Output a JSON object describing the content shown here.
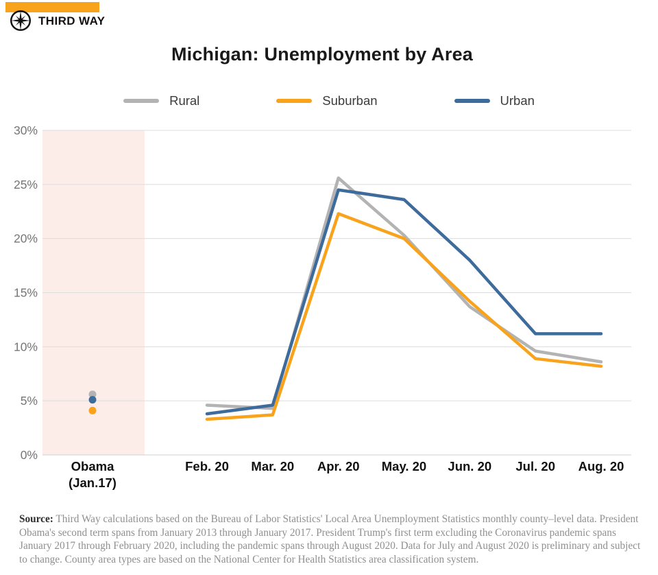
{
  "brand": {
    "name": "THIRD WAY",
    "accent_color": "#F9A21B",
    "logo_icon": "compass-star-icon"
  },
  "chart_data": {
    "type": "line",
    "title": "Michigan: Unemployment by Area",
    "categories": [
      "Obama (Jan.17)",
      "Feb. 20",
      "Mar. 20",
      "Apr. 20",
      "May. 20",
      "Jun. 20",
      "Jul. 20",
      "Aug. 20"
    ],
    "series": [
      {
        "name": "Rural",
        "color": "#B3B3B3",
        "values": [
          5.6,
          4.6,
          4.3,
          25.6,
          20.3,
          13.7,
          9.6,
          8.6
        ]
      },
      {
        "name": "Suburban",
        "color": "#F9A21B",
        "values": [
          4.1,
          3.3,
          3.7,
          22.3,
          20.0,
          14.2,
          8.9,
          8.2
        ]
      },
      {
        "name": "Urban",
        "color": "#3D6B9B",
        "values": [
          5.1,
          3.8,
          4.6,
          24.5,
          23.6,
          18.0,
          11.2,
          11.2
        ]
      }
    ],
    "xlabel": "",
    "ylabel": "",
    "ylim": [
      0,
      30
    ],
    "y_ticks": [
      "0%",
      "5%",
      "10%",
      "15%",
      "20%",
      "25%",
      "30%"
    ],
    "grid": true,
    "legend_position": "top",
    "first_category_style": "dots-only",
    "highlight_band": {
      "category": "Obama (Jan.17)",
      "color": "#FCEDE9"
    },
    "gridline_color": "#DCDCDC",
    "axis_line_color": "#D0D0D0",
    "tick_label_color": "#757575",
    "x_label_color": "#111111"
  },
  "source": {
    "label": "Source:",
    "text": "Third Way calculations based on the Bureau of Labor Statistics' Local Area Unemployment Statistics monthly county–level data. President Obama's second term spans from January 2013 through January 2017. President Trump's first term excluding the Coronavirus pandemic spans January 2017 through February 2020, including the pandemic spans through August 2020. Data for July and August 2020 is preliminary and subject to change. County area types are based on the National Center for Health Statistics area classification system."
  }
}
